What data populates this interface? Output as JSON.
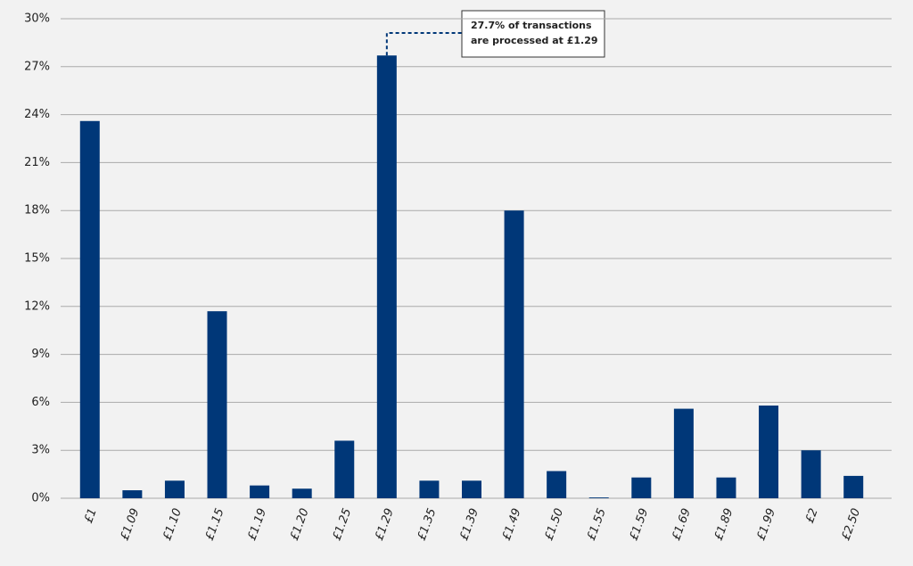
{
  "chart_data": {
    "type": "bar",
    "categories": [
      "£1",
      "£1.09",
      "£1.10",
      "£1.15",
      "£1.19",
      "£1.20",
      "£1.25",
      "£1.29",
      "£1.35",
      "£1.39",
      "£1.49",
      "£1.50",
      "£1.55",
      "£1.59",
      "£1.69",
      "£1.89",
      "£1.99",
      "£2",
      "£2.50"
    ],
    "values": [
      23.6,
      0.5,
      1.1,
      11.7,
      0.8,
      0.6,
      3.6,
      27.7,
      1.1,
      1.1,
      18.0,
      1.7,
      0.05,
      1.3,
      5.6,
      1.3,
      5.8,
      3.0,
      1.4
    ],
    "color": "#003778",
    "ylim": [
      0,
      30
    ],
    "yticks": [
      {
        "value": 0,
        "label": "0%"
      },
      {
        "value": 3,
        "label": "3%"
      },
      {
        "value": 6,
        "label": "6%"
      },
      {
        "value": 9,
        "label": "9%"
      },
      {
        "value": 12,
        "label": "12%"
      },
      {
        "value": 15,
        "label": "15%"
      },
      {
        "value": 18,
        "label": "18%"
      },
      {
        "value": 21,
        "label": "21%"
      },
      {
        "value": 24,
        "label": "24%"
      },
      {
        "value": 27,
        "label": "27%"
      },
      {
        "value": 30,
        "label": "30%"
      }
    ],
    "grid": true,
    "annotation": {
      "lines": [
        "27.7% of transactions",
        "are processed at £1.29"
      ],
      "category_index": 7
    }
  }
}
